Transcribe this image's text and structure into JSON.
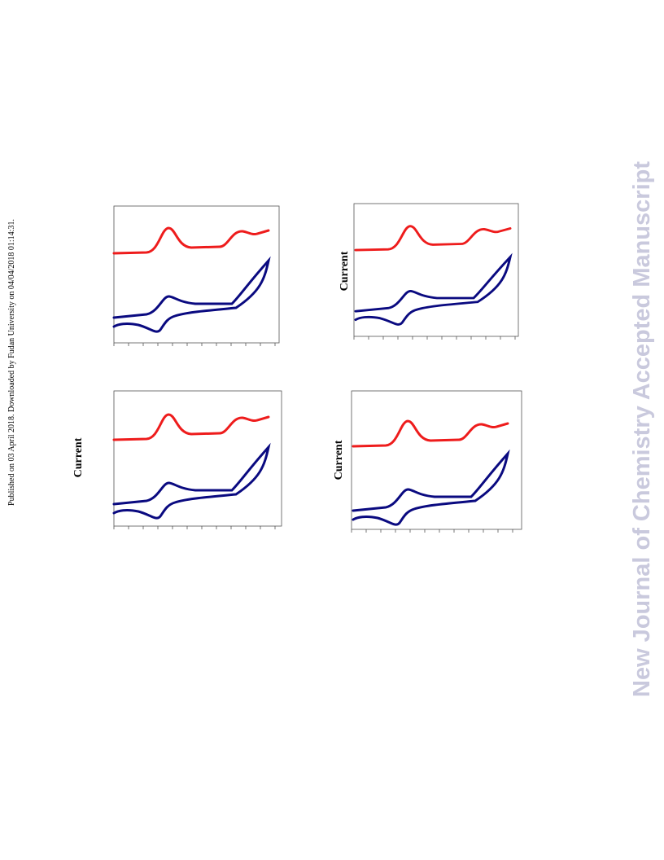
{
  "sidebar_note": "Published on 03 April 2018. Downloaded by Fudan University on 04/04/2018 01:14:31.",
  "watermark": "New Journal of Chemistry Accepted Manuscript",
  "panels": [
    {
      "y_label": null
    },
    {
      "y_label": "Current"
    },
    {
      "y_label": "Current"
    },
    {
      "y_label": "Current"
    }
  ]
}
